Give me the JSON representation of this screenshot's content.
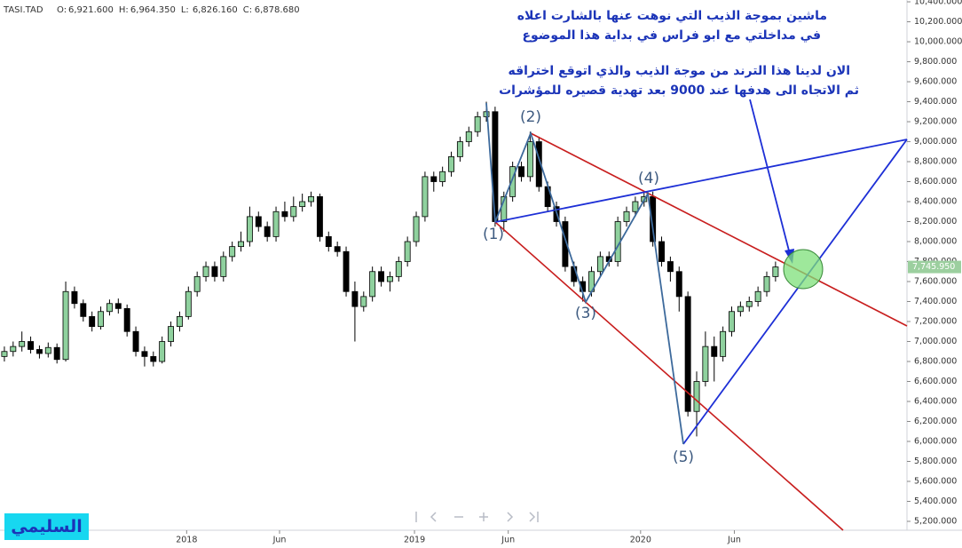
{
  "chart_data": {
    "type": "candlestick",
    "header": {
      "symbol": "TASI.TAD",
      "fields": [
        "O:",
        "6,921.600",
        "H:",
        "6,964.350",
        "L:",
        "6,826.160",
        "C:",
        "6,878.680"
      ]
    },
    "up_color": "#8fd19e",
    "down_color": "#000000",
    "grid": false,
    "x": [
      0.5,
      1.5,
      2.5,
      3.5,
      4.5,
      5.5,
      6.5,
      7.5,
      8.5,
      9.5,
      10.5,
      11.5,
      12.5,
      13.5,
      14.5,
      15.5,
      16.5,
      17.5,
      18.5,
      19.5,
      20.5,
      21.5,
      22.5,
      23.5,
      24.5,
      25.5,
      26.5,
      27.5,
      28.5,
      29.5,
      30.5,
      31.5,
      32.5,
      33.5,
      34.5,
      35.5,
      36.5,
      37.5,
      38.5,
      39.5,
      40.5,
      41.5,
      42.5,
      43.5,
      44.5,
      45.5,
      46.5,
      47.5,
      48.5,
      49.5,
      50.5,
      51.5,
      52.5,
      53.5,
      54.5,
      55.5,
      56.5,
      57.5,
      58.5,
      59.5,
      60.5,
      61.5,
      62.5,
      63.5,
      64.5,
      65.5,
      66.5,
      67.5,
      68.5,
      69.5,
      70.5,
      71.5,
      72.5,
      73.5,
      74.5,
      75.5,
      76.5,
      77.5,
      78.5,
      79.5,
      80.5,
      81.5,
      82.5,
      83.5,
      84.5,
      85.5,
      86.5,
      87.5,
      88.5
    ],
    "open": [
      6850,
      6900,
      6950,
      7000,
      6920,
      6880,
      6940,
      6820,
      7500,
      7380,
      7250,
      7150,
      7300,
      7380,
      7330,
      7100,
      6900,
      6850,
      6800,
      7000,
      7150,
      7250,
      7500,
      7650,
      7750,
      7650,
      7850,
      7950,
      8000,
      8250,
      8150,
      8050,
      8300,
      8250,
      8350,
      8400,
      8450,
      8050,
      7950,
      7900,
      7500,
      7350,
      7450,
      7700,
      7600,
      7650,
      7800,
      8000,
      8250,
      8650,
      8600,
      8700,
      8850,
      9000,
      9100,
      9250,
      9300,
      8200,
      8450,
      8750,
      8650,
      9000,
      8550,
      8350,
      8200,
      7750,
      7600,
      7500,
      7700,
      7850,
      7800,
      8200,
      8300,
      8400,
      8450,
      8000,
      7800,
      7700,
      7450,
      6300,
      6600,
      6950,
      6850,
      7100,
      7300,
      7350,
      7400,
      7500,
      7650
    ],
    "high": [
      6950,
      7000,
      7100,
      7050,
      6960,
      6990,
      6980,
      7600,
      7550,
      7420,
      7300,
      7350,
      7420,
      7430,
      7370,
      7150,
      6950,
      6900,
      7050,
      7200,
      7300,
      7550,
      7700,
      7800,
      7800,
      7900,
      8000,
      8100,
      8350,
      8300,
      8200,
      8350,
      8400,
      8450,
      8480,
      8500,
      8480,
      8100,
      8000,
      7950,
      7600,
      7500,
      7750,
      7750,
      7700,
      7850,
      8050,
      8300,
      8700,
      8700,
      8750,
      8900,
      9050,
      9150,
      9300,
      9400,
      9350,
      8500,
      8800,
      8800,
      9100,
      9050,
      8600,
      8400,
      8250,
      7800,
      7650,
      7750,
      7900,
      7900,
      8250,
      8350,
      8450,
      8500,
      8500,
      8050,
      7850,
      7750,
      7500,
      6700,
      7100,
      7050,
      7150,
      7350,
      7400,
      7450,
      7550,
      7700,
      7800
    ],
    "low": [
      6800,
      6850,
      6900,
      6880,
      6830,
      6840,
      6780,
      6800,
      7330,
      7200,
      7100,
      7120,
      7260,
      7280,
      7050,
      6850,
      6750,
      6750,
      6780,
      6950,
      7100,
      7220,
      7450,
      7600,
      7600,
      7600,
      7800,
      7900,
      7950,
      8100,
      8000,
      8000,
      8200,
      8200,
      8300,
      8350,
      8000,
      7900,
      7850,
      7450,
      7000,
      7300,
      7400,
      7550,
      7500,
      7600,
      7750,
      7950,
      8200,
      8500,
      8550,
      8650,
      8800,
      8950,
      9050,
      9200,
      8150,
      8100,
      8400,
      8600,
      8600,
      8500,
      8300,
      8150,
      7700,
      7550,
      7400,
      7450,
      7650,
      7750,
      7750,
      8150,
      8250,
      8350,
      7950,
      7750,
      7600,
      7300,
      6250,
      6050,
      6550,
      6600,
      6800,
      7050,
      7250,
      7300,
      7350,
      7450,
      7600
    ],
    "close": [
      6900,
      6950,
      7000,
      6920,
      6880,
      6940,
      6820,
      7500,
      7380,
      7250,
      7150,
      7300,
      7380,
      7330,
      7100,
      6900,
      6850,
      6800,
      7000,
      7150,
      7250,
      7500,
      7650,
      7750,
      7650,
      7850,
      7950,
      8000,
      8250,
      8150,
      8050,
      8300,
      8250,
      8350,
      8400,
      8450,
      8050,
      7950,
      7900,
      7500,
      7350,
      7450,
      7700,
      7600,
      7650,
      7800,
      8000,
      8250,
      8650,
      8600,
      8700,
      8850,
      9000,
      9100,
      9250,
      9300,
      8200,
      8450,
      8750,
      8650,
      9000,
      8550,
      8350,
      8200,
      7750,
      7600,
      7500,
      7700,
      7850,
      7800,
      8200,
      8300,
      8400,
      8450,
      8000,
      7800,
      7700,
      7450,
      6300,
      6600,
      6950,
      6850,
      7100,
      7300,
      7350,
      7400,
      7500,
      7650,
      7745.95
    ],
    "last_price": {
      "value": 7745.95,
      "label": "7,745.950"
    },
    "xlim": [
      0,
      103.5
    ],
    "xticks": [
      {
        "value": 21.3,
        "label": "2018"
      },
      {
        "value": 31.9,
        "label": "Jun"
      },
      {
        "value": 47.3,
        "label": "2019"
      },
      {
        "value": 58.0,
        "label": "Jun"
      },
      {
        "value": 73.1,
        "label": "2020"
      },
      {
        "value": 83.8,
        "label": "Jun"
      }
    ],
    "ylim": [
      5111,
      10418
    ],
    "yticks": [
      {
        "value": 5200,
        "label": "5,200.000"
      },
      {
        "value": 5400,
        "label": "5,400.000"
      },
      {
        "value": 5600,
        "label": "5,600.000"
      },
      {
        "value": 5800,
        "label": "5,800.000"
      },
      {
        "value": 6000,
        "label": "6,000.000"
      },
      {
        "value": 6200,
        "label": "6,200.000"
      },
      {
        "value": 6400,
        "label": "6,400.000"
      },
      {
        "value": 6600,
        "label": "6,600.000"
      },
      {
        "value": 6800,
        "label": "6,800.000"
      },
      {
        "value": 7000,
        "label": "7,000.000"
      },
      {
        "value": 7200,
        "label": "7,200.000"
      },
      {
        "value": 7400,
        "label": "7,400.000"
      },
      {
        "value": 7600,
        "label": "7,600.000"
      },
      {
        "value": 7800,
        "label": "7,800.000"
      },
      {
        "value": 8000,
        "label": "8,000.000"
      },
      {
        "value": 8200,
        "label": "8,200.000"
      },
      {
        "value": 8400,
        "label": "8,400.000"
      },
      {
        "value": 8600,
        "label": "8,600.000"
      },
      {
        "value": 8800,
        "label": "8,800.000"
      },
      {
        "value": 9000,
        "label": "9,000.000"
      },
      {
        "value": 9200,
        "label": "9,200.000"
      },
      {
        "value": 9400,
        "label": "9,400.000"
      },
      {
        "value": 9600,
        "label": "9,600.000"
      },
      {
        "value": 9800,
        "label": "9,800.000"
      },
      {
        "value": 10000,
        "label": "10,000.000"
      },
      {
        "value": 10200,
        "label": "10,200.000"
      },
      {
        "value": 10400,
        "label": "10,400.000"
      }
    ],
    "annotations": [
      "ماشين بموجة الذيب التي نوهت عنها بالشارت اعلاه",
      "في مداخلتي مع ابو فراس في بداية هذا الموضوع",
      "الان لدينا هذا الترند من موجة الذيب والذي اتوقع اختراقه",
      "ثم الاتجاه الى هدفها عند 9000 بعد تهدية قصيره للمؤشرات"
    ],
    "wave_labels": [
      "(1)",
      "(2)",
      "(3)",
      "(4)",
      "(5)"
    ],
    "signature": "السليمي"
  }
}
